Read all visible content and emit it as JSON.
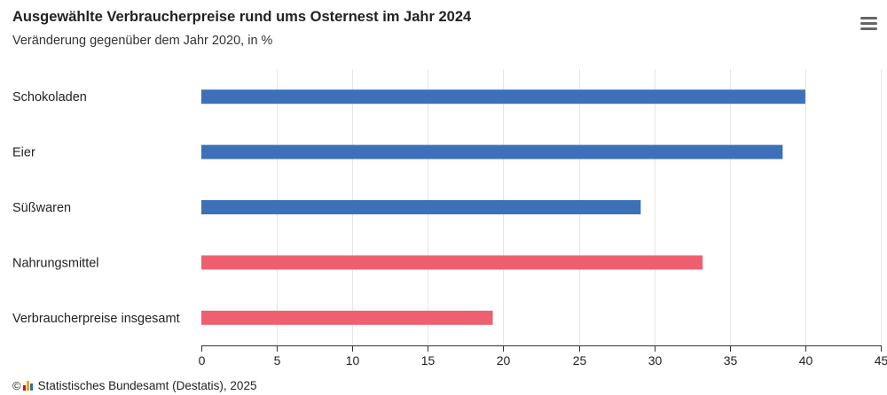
{
  "header": {
    "title": "Ausgewählte Verbraucherpreise rund ums Osternest im Jahr 2024",
    "subtitle": "Veränderung gegenüber dem Jahr 2020, in %",
    "menu_icon": "hamburger-menu-icon"
  },
  "footer": {
    "copyright_symbol": "©",
    "source_text": "Statistisches Bundesamt (Destatis), 2025",
    "logo_icon": "destatis-logo-icon"
  },
  "chart_data": {
    "type": "bar",
    "orientation": "horizontal",
    "title": "Ausgewählte Verbraucherpreise rund ums Osternest im Jahr 2024",
    "subtitle": "Veränderung gegenüber dem Jahr 2020, in %",
    "categories": [
      "Schokoladen",
      "Eier",
      "Süßwaren",
      "Nahrungsmittel",
      "Verbraucherpreise insgesamt"
    ],
    "values": [
      40.0,
      38.5,
      29.1,
      33.2,
      19.3
    ],
    "bar_colors": [
      "#3c70b8",
      "#3c70b8",
      "#3c70b8",
      "#ee5f70",
      "#ee5f70"
    ],
    "xlim": [
      0,
      45
    ],
    "xticks": [
      0,
      5,
      10,
      15,
      20,
      25,
      30,
      35,
      40,
      45
    ],
    "grid": true,
    "legend": "none"
  }
}
